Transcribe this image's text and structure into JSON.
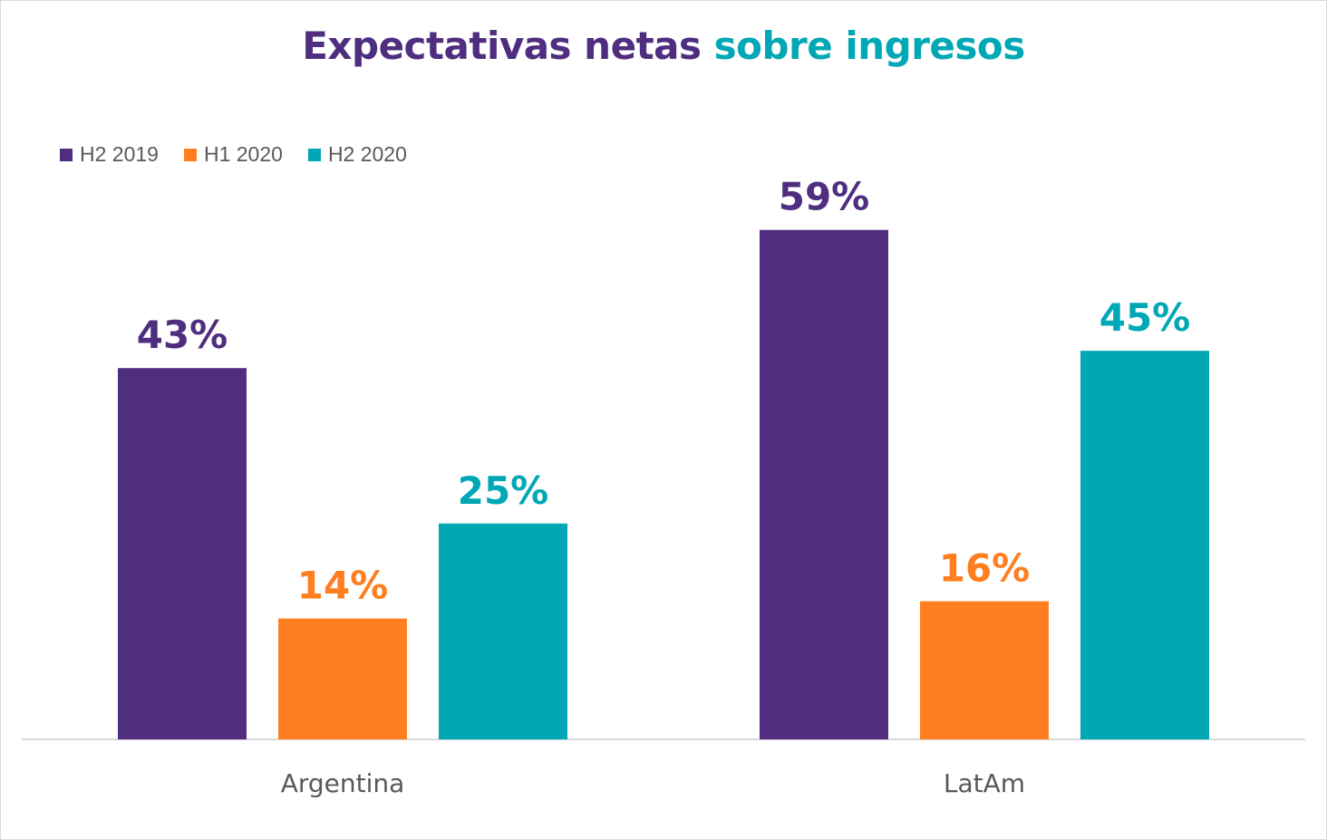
{
  "chart_data": {
    "type": "bar",
    "title_parts": [
      "Expectativas netas",
      "sobre ingresos"
    ],
    "title_colors": [
      "#4F2D7F",
      "#00A8B5"
    ],
    "categories": [
      "Argentina",
      "LatAm"
    ],
    "series": [
      {
        "name": "H2 2019",
        "color": "#4F2D7F",
        "values": [
          43,
          59
        ],
        "labels": [
          "43%",
          "59%"
        ]
      },
      {
        "name": "H1 2020",
        "color": "#FF7F20",
        "values": [
          14,
          16
        ],
        "labels": [
          "14%",
          "16%"
        ]
      },
      {
        "name": "H2 2020",
        "color": "#00A8B5",
        "values": [
          25,
          45
        ],
        "labels": [
          "25%",
          "45%"
        ]
      }
    ],
    "xlabel": "",
    "ylabel": "",
    "unit": "%",
    "grid": false,
    "legend": "top-left"
  }
}
